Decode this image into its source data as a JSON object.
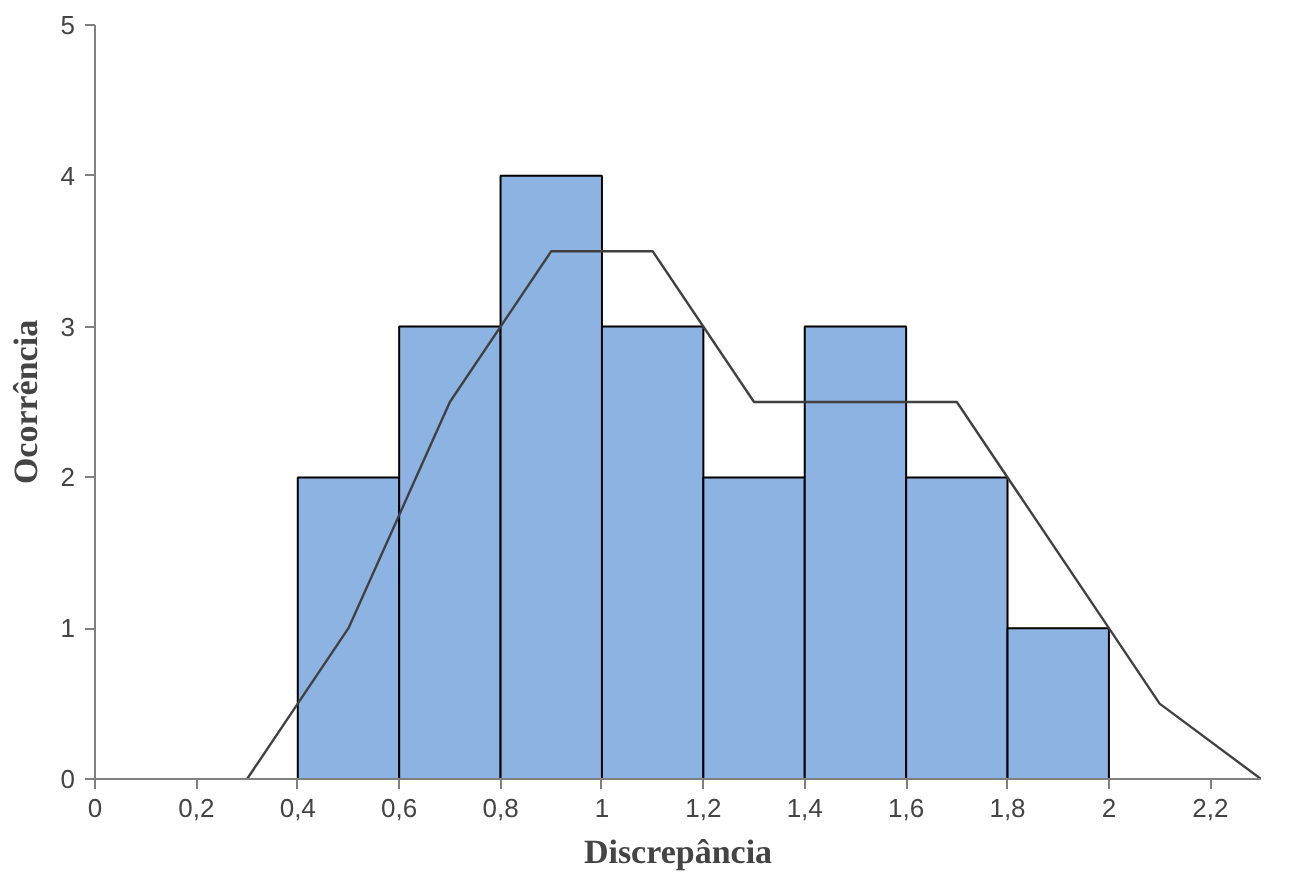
{
  "chart_data": {
    "type": "histogram",
    "xlabel": "Discrepância",
    "ylabel": "Ocorrência",
    "bins": [
      0.4,
      0.6,
      0.8,
      1.0,
      1.2,
      1.4,
      1.6,
      1.8,
      2.0
    ],
    "values": [
      2,
      3,
      4,
      3,
      2,
      3,
      2,
      1
    ],
    "color": "#8db3e2",
    "series": [
      {
        "type": "line",
        "x": [
          0.3,
          0.5,
          0.7,
          0.9,
          1.1,
          1.3,
          1.5,
          1.7,
          2.0,
          2.1,
          2.3
        ],
        "values": [
          0,
          1,
          2.5,
          3.5,
          3.5,
          2.5,
          2.5,
          2.5,
          1,
          0.5,
          0
        ],
        "color": "#404040"
      }
    ],
    "xlim": [
      0,
      2.3
    ],
    "ylim": [
      0,
      5
    ],
    "xticks": [
      0,
      {
        "value": 0.2,
        "label": "0,2"
      },
      {
        "value": 0.4,
        "label": "0,4"
      },
      {
        "value": 0.6,
        "label": "0,6"
      },
      {
        "value": 0.8,
        "label": "0,8"
      },
      1,
      {
        "value": 1.2,
        "label": "1,2"
      },
      {
        "value": 1.4,
        "label": "1,4"
      },
      {
        "value": 1.6,
        "label": "1,6"
      },
      {
        "value": 1.8,
        "label": "1,8"
      },
      2,
      {
        "value": 2.2,
        "label": "2,2"
      }
    ],
    "yticks": [
      0,
      1,
      2,
      3,
      4,
      5
    ],
    "grid": false
  }
}
